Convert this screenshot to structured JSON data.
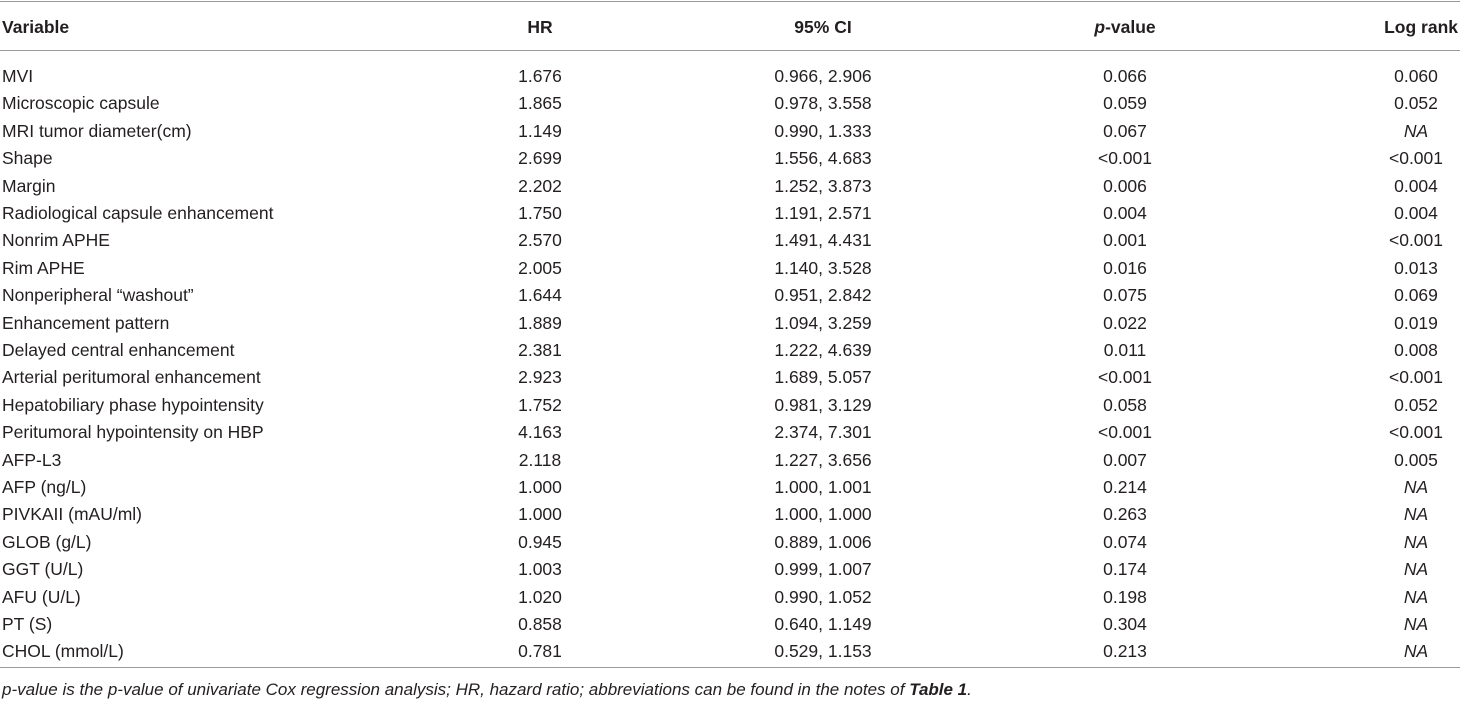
{
  "header": [
    "Variable",
    "HR",
    "95% CI",
    [
      "p",
      "-value"
    ],
    "Log rank"
  ],
  "rows": [
    [
      "MVI",
      "1.676",
      "0.966, 2.906",
      "0.066",
      "0.060"
    ],
    [
      "Microscopic capsule",
      "1.865",
      "0.978, 3.558",
      "0.059",
      "0.052"
    ],
    [
      "MRI tumor diameter(cm)",
      "1.149",
      "0.990, 1.333",
      "0.067",
      "NA"
    ],
    [
      "Shape",
      "2.699",
      "1.556, 4.683",
      "<0.001",
      "<0.001"
    ],
    [
      "Margin",
      "2.202",
      "1.252, 3.873",
      "0.006",
      "0.004"
    ],
    [
      "Radiological capsule enhancement",
      "1.750",
      "1.191, 2.571",
      "0.004",
      "0.004"
    ],
    [
      "Nonrim APHE",
      "2.570",
      "1.491, 4.431",
      "0.001",
      "<0.001"
    ],
    [
      "Rim APHE",
      "2.005",
      "1.140, 3.528",
      "0.016",
      "0.013"
    ],
    [
      "Nonperipheral “washout”",
      "1.644",
      "0.951, 2.842",
      "0.075",
      "0.069"
    ],
    [
      "Enhancement pattern",
      "1.889",
      "1.094, 3.259",
      "0.022",
      "0.019"
    ],
    [
      "Delayed central enhancement",
      "2.381",
      "1.222, 4.639",
      "0.011",
      "0.008"
    ],
    [
      "Arterial peritumoral enhancement",
      "2.923",
      "1.689, 5.057",
      "<0.001",
      "<0.001"
    ],
    [
      "Hepatobiliary phase hypointensity",
      "1.752",
      "0.981, 3.129",
      "0.058",
      "0.052"
    ],
    [
      "Peritumoral hypointensity on HBP",
      "4.163",
      "2.374, 7.301",
      "<0.001",
      "<0.001"
    ],
    [
      "AFP-L3",
      "2.118",
      "1.227, 3.656",
      "0.007",
      "0.005"
    ],
    [
      "AFP (ng/L)",
      "1.000",
      "1.000, 1.001",
      "0.214",
      "NA"
    ],
    [
      "PIVKAII (mAU/ml)",
      "1.000",
      "1.000, 1.000",
      "0.263",
      "NA"
    ],
    [
      "GLOB (g/L)",
      "0.945",
      "0.889, 1.006",
      "0.074",
      "NA"
    ],
    [
      "GGT (U/L)",
      "1.003",
      "0.999, 1.007",
      "0.174",
      "NA"
    ],
    [
      "AFU (U/L)",
      "1.020",
      "0.990, 1.052",
      "0.198",
      "NA"
    ],
    [
      "PT (S)",
      "0.858",
      "0.640, 1.149",
      "0.304",
      "NA"
    ],
    [
      "CHOL (mmol/L)",
      "0.781",
      "0.529, 1.153",
      "0.213",
      "NA"
    ]
  ],
  "footnote": [
    "p-value is the p-value of univariate Cox regression analysis; HR, hazard ratio; abbreviations can be found in the notes of ",
    "Table 1",
    "."
  ]
}
